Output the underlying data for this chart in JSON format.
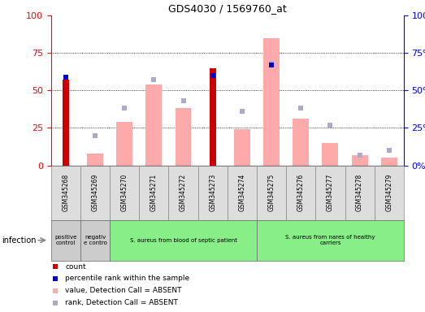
{
  "title": "GDS4030 / 1569760_at",
  "samples": [
    "GSM345268",
    "GSM345269",
    "GSM345270",
    "GSM345271",
    "GSM345272",
    "GSM345273",
    "GSM345274",
    "GSM345275",
    "GSM345276",
    "GSM345277",
    "GSM345278",
    "GSM345279"
  ],
  "count_values": [
    57,
    0,
    0,
    0,
    0,
    65,
    0,
    0,
    0,
    0,
    0,
    0
  ],
  "percentile_rank_values": [
    59,
    0,
    0,
    0,
    0,
    60,
    0,
    67,
    0,
    0,
    0,
    0
  ],
  "absent_value_bars": [
    0,
    8,
    29,
    54,
    38,
    0,
    24,
    85,
    31,
    15,
    7,
    5
  ],
  "absent_rank_dots": [
    0,
    20,
    38,
    57,
    43,
    0,
    36,
    68,
    38,
    27,
    7,
    10
  ],
  "count_color": "#cc0000",
  "percentile_color": "#0000cc",
  "absent_value_color": "#ffaaaa",
  "absent_rank_color": "#aaaacc",
  "group_labels": [
    "positive\ncontrol",
    "negativ\ne contro",
    "S. aureus from blood of septic patient",
    "S. aureus from nares of healthy\ncarriers"
  ],
  "group_ranges": [
    [
      0,
      1
    ],
    [
      1,
      2
    ],
    [
      2,
      7
    ],
    [
      7,
      12
    ]
  ],
  "group_bg_colors": [
    "#cccccc",
    "#cccccc",
    "#88ee88",
    "#88ee88"
  ],
  "infection_label": "infection",
  "legend_items": [
    "count",
    "percentile rank within the sample",
    "value, Detection Call = ABSENT",
    "rank, Detection Call = ABSENT"
  ],
  "legend_colors": [
    "#cc0000",
    "#0000cc",
    "#ffaaaa",
    "#aaaacc"
  ],
  "ylim": [
    0,
    100
  ],
  "yticks": [
    0,
    25,
    50,
    75,
    100
  ]
}
